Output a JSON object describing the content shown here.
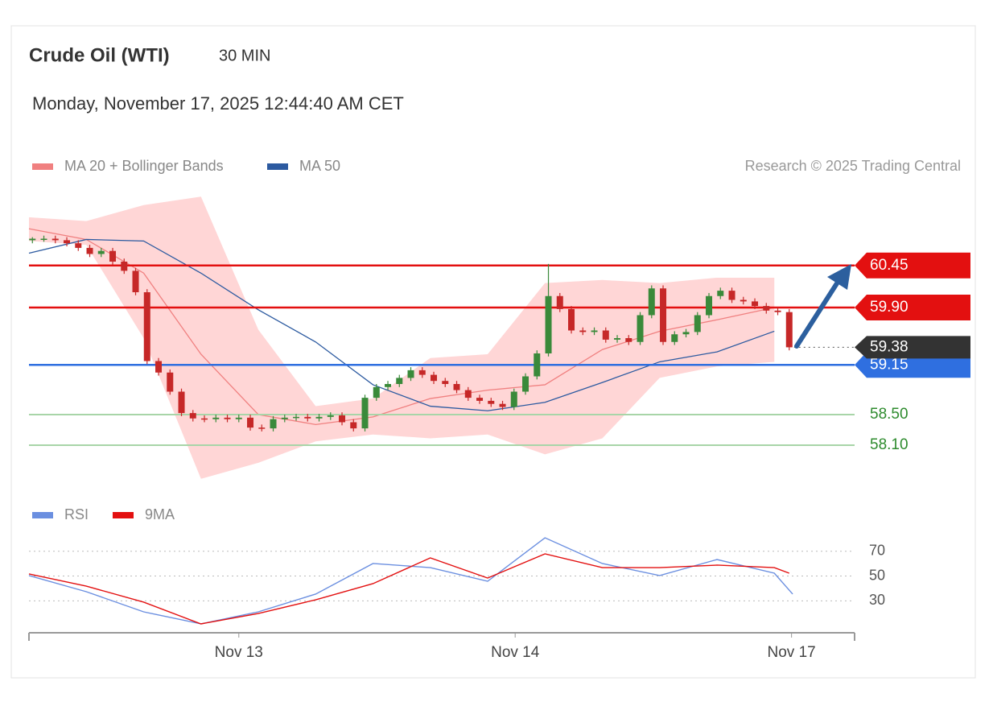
{
  "chart_data": [
    {
      "type": "candlestick",
      "title": "Crude Oil (WTI)",
      "timeframe": "30 MIN",
      "subtitle": "Monday, November 17, 2025 12:44:40 AM CET",
      "credit": "Research © 2025 Trading Central",
      "xlim": [
        0,
        72
      ],
      "ylim": [
        57.5,
        61.5
      ],
      "up_color": "#3a8a3a",
      "down_color": "#c62828",
      "x": [
        0.3,
        1.3,
        2.3,
        3.3,
        4.3,
        5.3,
        6.3,
        7.3,
        8.3,
        9.3,
        10.3,
        11.3,
        12.3,
        13.3,
        14.3,
        15.3,
        16.3,
        17.3,
        18.3,
        19.3,
        20.3,
        21.3,
        22.3,
        23.3,
        24.3,
        25.3,
        26.3,
        27.3,
        28.3,
        29.3,
        30.3,
        31.3,
        32.3,
        33.3,
        34.3,
        35.3,
        36.3,
        37.3,
        38.3,
        39.3,
        40.3,
        41.3,
        42.3,
        43.3,
        44.3,
        45.3,
        46.3,
        47.3,
        48.3,
        49.3,
        50.3,
        51.3,
        52.3,
        53.3,
        54.3,
        55.3,
        56.3,
        57.3,
        58.3,
        59.3,
        60.3,
        61.3,
        62.3,
        63.3,
        64.3,
        65.3,
        66.3
      ],
      "open": [
        60.78,
        60.8,
        60.8,
        60.78,
        60.74,
        60.68,
        60.6,
        60.64,
        60.5,
        60.38,
        60.1,
        59.2,
        59.05,
        58.8,
        58.52,
        58.45,
        58.44,
        58.46,
        58.44,
        58.46,
        58.33,
        58.32,
        58.44,
        58.46,
        58.47,
        58.45,
        58.47,
        58.49,
        58.4,
        58.32,
        58.72,
        58.86,
        58.9,
        58.98,
        59.08,
        59.02,
        58.94,
        58.9,
        58.82,
        58.72,
        58.68,
        58.64,
        58.6,
        58.8,
        59.0,
        59.3,
        60.05,
        59.88,
        59.6,
        59.58,
        59.6,
        59.48,
        59.5,
        59.45,
        59.8,
        60.15,
        59.45,
        59.55,
        59.58,
        59.8,
        60.05,
        60.12,
        60.0,
        59.98,
        59.92,
        59.86,
        59.84
      ],
      "high": [
        60.82,
        60.84,
        60.84,
        60.82,
        60.78,
        60.72,
        60.68,
        60.68,
        60.54,
        60.42,
        60.14,
        59.24,
        59.09,
        58.84,
        58.56,
        58.49,
        58.5,
        58.5,
        58.5,
        58.5,
        58.37,
        58.48,
        58.5,
        58.51,
        58.51,
        58.51,
        58.53,
        58.53,
        58.44,
        58.76,
        58.9,
        58.94,
        59.02,
        59.12,
        59.12,
        59.06,
        58.98,
        58.94,
        58.86,
        58.76,
        58.72,
        58.68,
        58.84,
        59.04,
        59.34,
        60.47,
        60.09,
        59.92,
        59.64,
        59.64,
        59.64,
        59.54,
        59.54,
        59.84,
        60.19,
        60.19,
        59.59,
        59.62,
        59.84,
        60.09,
        60.16,
        60.16,
        60.04,
        60.02,
        59.96,
        59.9,
        59.88
      ],
      "low": [
        60.74,
        60.76,
        60.74,
        60.7,
        60.64,
        60.56,
        60.56,
        60.46,
        60.34,
        60.06,
        59.16,
        59.01,
        58.76,
        58.48,
        58.41,
        58.4,
        58.4,
        58.4,
        58.4,
        58.29,
        58.28,
        58.28,
        58.4,
        58.42,
        58.41,
        58.41,
        58.43,
        58.36,
        58.28,
        58.28,
        58.68,
        58.82,
        58.86,
        58.94,
        58.98,
        58.9,
        58.86,
        58.78,
        58.68,
        58.64,
        58.6,
        58.56,
        58.56,
        58.76,
        58.96,
        59.26,
        59.84,
        59.56,
        59.54,
        59.54,
        59.44,
        59.44,
        59.41,
        59.41,
        59.76,
        59.41,
        59.41,
        59.51,
        59.54,
        59.76,
        60.01,
        59.96,
        59.94,
        59.88,
        59.82,
        59.8,
        59.34
      ],
      "close": [
        60.8,
        60.8,
        60.78,
        60.74,
        60.68,
        60.6,
        60.64,
        60.5,
        60.38,
        60.1,
        59.2,
        59.05,
        58.8,
        58.52,
        58.45,
        58.44,
        58.46,
        58.44,
        58.46,
        58.33,
        58.32,
        58.44,
        58.46,
        58.47,
        58.45,
        58.47,
        58.49,
        58.4,
        58.32,
        58.72,
        58.86,
        58.9,
        58.98,
        59.08,
        59.02,
        58.94,
        58.9,
        58.82,
        58.72,
        58.68,
        58.64,
        58.6,
        58.8,
        59.0,
        59.3,
        60.05,
        59.88,
        59.6,
        59.58,
        59.6,
        59.48,
        59.5,
        59.45,
        59.8,
        60.15,
        59.45,
        59.55,
        59.58,
        59.8,
        60.05,
        60.12,
        60.0,
        59.98,
        59.92,
        59.86,
        59.84,
        59.38
      ],
      "series": [
        {
          "name": "MA 20 + Bollinger Bands",
          "color": "#f08080",
          "band_color": "#ffd6d6",
          "x": [
            0,
            5,
            10,
            15,
            20,
            25,
            30,
            35,
            40,
            45,
            50,
            55,
            60,
            65
          ],
          "values": [
            60.93,
            60.79,
            60.35,
            59.29,
            58.5,
            58.37,
            58.47,
            58.71,
            58.82,
            58.89,
            59.35,
            59.59,
            59.74,
            59.9
          ],
          "upper": [
            61.08,
            61.03,
            61.24,
            61.35,
            59.61,
            58.61,
            58.71,
            59.24,
            59.29,
            60.22,
            60.26,
            60.22,
            60.29,
            60.29
          ],
          "lower": [
            60.77,
            60.72,
            59.5,
            57.66,
            57.87,
            58.15,
            58.24,
            58.19,
            58.24,
            57.98,
            58.19,
            58.98,
            59.13,
            59.19
          ]
        },
        {
          "name": "MA 50",
          "color": "#2c5aa0",
          "x": [
            0,
            5,
            10,
            15,
            20,
            25,
            30,
            35,
            40,
            45,
            50,
            55,
            60,
            65
          ],
          "values": [
            60.61,
            60.79,
            60.77,
            60.35,
            59.87,
            59.45,
            58.89,
            58.61,
            58.55,
            58.66,
            58.92,
            59.19,
            59.32,
            59.59
          ]
        }
      ],
      "levels": [
        {
          "value": 60.45,
          "label": "60.45",
          "color": "#e31010",
          "label_style": "tag"
        },
        {
          "value": 59.9,
          "label": "59.90",
          "color": "#e31010",
          "label_style": "tag"
        },
        {
          "value": 59.15,
          "label": "59.15",
          "color": "#2f6fe0",
          "label_style": "tag"
        },
        {
          "value": 58.5,
          "label": "58.50",
          "color": "#a8d5a8",
          "text_color": "#2e8b2e",
          "label_style": "plain"
        },
        {
          "value": 58.1,
          "label": "58.10",
          "color": "#a8d5a8",
          "text_color": "#2e8b2e",
          "label_style": "plain"
        }
      ],
      "last": {
        "value": 59.38,
        "label": "59.38",
        "color": "#333333"
      }
    },
    {
      "type": "line",
      "xlim": [
        0,
        72
      ],
      "ylim": [
        5,
        86
      ],
      "yticks": [
        30,
        50,
        70
      ],
      "xticks": [
        {
          "value": 18.3,
          "label": "Nov 13"
        },
        {
          "value": 42.4,
          "label": "Nov 14"
        },
        {
          "value": 66.5,
          "label": "Nov 17"
        }
      ],
      "series": [
        {
          "name": "RSI",
          "color": "#6b8fe0",
          "x": [
            0,
            5,
            10,
            15,
            20,
            25,
            30,
            35,
            40,
            45,
            50,
            55,
            60,
            65,
            66.6
          ],
          "values": [
            50.4,
            37.4,
            21.2,
            11.5,
            21.2,
            35.5,
            60.1,
            56.8,
            45.8,
            80.8,
            60.1,
            50.4,
            63.3,
            52.3,
            35.5
          ]
        },
        {
          "name": "9MA",
          "color": "#e31010",
          "x": [
            0,
            5,
            10,
            15,
            20,
            25,
            30,
            35,
            40,
            45,
            50,
            55,
            60,
            65,
            66.3
          ],
          "values": [
            51.7,
            41.9,
            29.0,
            11.5,
            19.9,
            30.9,
            43.9,
            64.6,
            48.4,
            67.9,
            56.8,
            56.8,
            58.8,
            56.8,
            52.3
          ]
        }
      ]
    }
  ]
}
